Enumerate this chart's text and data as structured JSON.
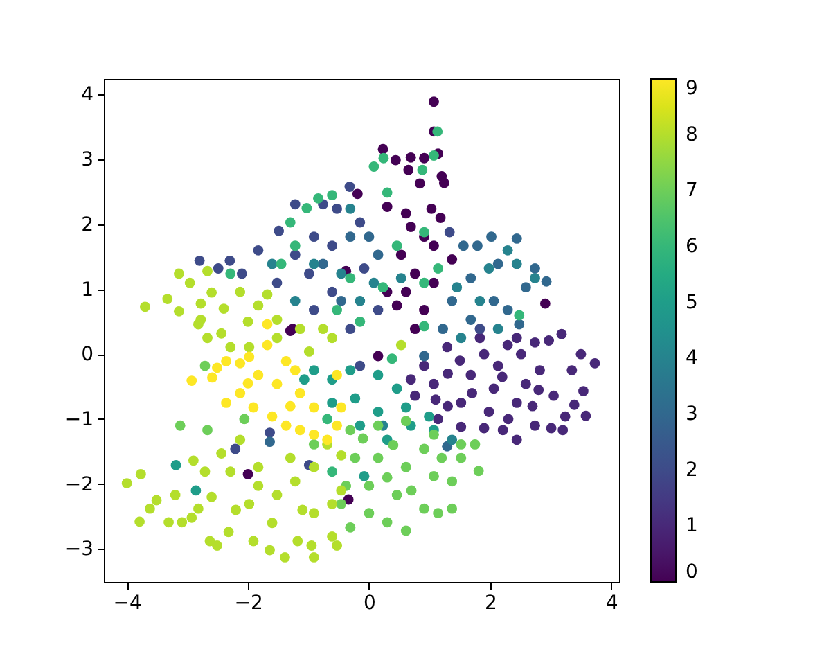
{
  "chart_data": {
    "type": "scatter",
    "x": [
      1.07,
      1.07,
      0.23,
      0.44,
      0.69,
      0.91,
      1.14,
      0.65,
      1.2,
      1.24,
      0.84,
      -0.19,
      0.3,
      0.61,
      1.03,
      1.18,
      0.69,
      0.91,
      1.07,
      0.53,
      0.76,
      0.61,
      1.07,
      0.46,
      0.91,
      0.76,
      -0.38,
      -1.3,
      1.37,
      0.3,
      2.91,
      -2.0,
      -0.34,
      -1.26,
      0.15,
      2.74,
      2.97,
      3.18,
      3.5,
      3.73,
      3.35,
      3.54,
      3.58,
      3.39,
      3.05,
      3.24,
      3.2,
      3.01,
      2.74,
      2.44,
      2.21,
      1.9,
      1.52,
      1.14,
      0.76,
      0.69,
      0.91,
      1.29,
      1.83,
      2.29,
      2.51,
      2.82,
      1.68,
      2.06,
      1.52,
      2.44,
      1.07,
      2.13,
      2.59,
      1.98,
      2.44,
      1.3,
      1.7,
      2.2,
      1.3,
      2.7,
      1.9,
      2.3,
      1.1,
      2.8,
      1.5,
      -2.8,
      -2.49,
      -2.3,
      -2.1,
      -1.83,
      -1.49,
      -1.22,
      -0.76,
      -0.32,
      -0.53,
      -0.91,
      -1.22,
      -0.61,
      -0.15,
      -0.99,
      -1.52,
      -0.61,
      -0.08,
      0.15,
      -0.31,
      -0.91,
      1.33,
      1.83,
      -0.99,
      -1.64,
      -2.21,
      -0.15,
      2.44,
      2.02,
      1.79,
      1.56,
      2.74,
      2.93,
      2.59,
      2.13,
      2.48,
      2.29,
      1.68,
      1.37,
      1.22,
      1.68,
      2.06,
      -0.31,
      0.15,
      -0.76,
      -0.46,
      0.0,
      0.91,
      1.29,
      -1.64,
      -0.31,
      -0.91,
      -0.46,
      0.08,
      -0.15,
      0.53,
      1.45,
      1.83,
      2.13,
      1.52,
      -1.22,
      -1.6,
      2.29,
      1.98,
      2.44,
      2.74,
      1.37,
      0.23,
      -0.91,
      -0.61,
      -0.31,
      0.15,
      -0.23,
      0.15,
      0.61,
      0.99,
      1.07,
      0.3,
      -0.08,
      -0.61,
      0.46,
      -0.15,
      -1.07,
      0.69,
      -3.19,
      -2.86,
      0.08,
      0.24,
      0.88,
      1.13,
      1.07,
      0.3,
      -0.84,
      -1.03,
      -1.3,
      -0.61,
      0.91,
      0.46,
      -1.22,
      -1.45,
      -2.29,
      -0.31,
      -0.53,
      -0.15,
      0.91,
      0.91,
      1.14,
      0.23,
      2.48,
      0.38,
      -0.61,
      -0.69,
      -0.31,
      0.15,
      0.61,
      1.07,
      1.52,
      1.75,
      1.81,
      1.52,
      1.37,
      1.37,
      1.14,
      0.91,
      0.61,
      0.3,
      0.0,
      -0.31,
      -0.46,
      -0.38,
      -0.23,
      0.15,
      0.61,
      1.07,
      0.46,
      0.91,
      0.0,
      -0.91,
      -2.06,
      -3.12,
      -2.67,
      -2.71,
      0.3,
      0.7,
      0.4,
      1.2,
      -0.1,
      -3.7,
      -3.33,
      -3.14,
      -3.14,
      -2.96,
      -2.78,
      -2.67,
      -2.78,
      -2.44,
      -2.13,
      -1.83,
      -1.68,
      -1.52,
      -1.14,
      -0.76,
      -2.82,
      -2.67,
      -2.29,
      -1.98,
      -1.52,
      -0.99,
      -0.61,
      0.53,
      -2.4,
      -2.0,
      -2.6,
      -4.0,
      -3.77,
      -3.79,
      -3.62,
      -3.51,
      -3.31,
      -3.2,
      -3.09,
      -2.93,
      -2.82,
      -2.9,
      -2.71,
      -2.63,
      -2.51,
      -2.32,
      -1.91,
      -1.64,
      -1.39,
      -1.18,
      -0.91,
      -0.95,
      -0.61,
      -0.53,
      -0.61,
      -0.91,
      -1.52,
      -1.98,
      -2.29,
      -1.83,
      -1.3,
      -0.91,
      -0.69,
      -0.46,
      -2.13,
      -2.44,
      -1.83,
      -1.22,
      -0.46,
      -2.2,
      -1.6,
      -1.1,
      -2.6,
      -2.93,
      -2.51,
      -2.59,
      -2.36,
      -2.13,
      -1.98,
      -1.68,
      -1.37,
      -1.22,
      -2.36,
      -2.13,
      -1.91,
      -1.6,
      -1.37,
      -1.14,
      -0.91,
      -0.69,
      -0.53,
      -0.46,
      -0.91,
      -1.52,
      -1.83,
      -1.14,
      -0.53,
      -1.68,
      -2.0,
      -1.3
    ],
    "values": [
      3.89,
      3.43,
      3.16,
      2.99,
      3.03,
      3.02,
      3.09,
      2.84,
      2.74,
      2.64,
      2.63,
      2.47,
      2.27,
      2.17,
      2.24,
      2.1,
      1.96,
      1.81,
      1.67,
      1.53,
      1.24,
      0.96,
      1.1,
      0.75,
      0.68,
      0.39,
      1.28,
      0.36,
      1.46,
      0.96,
      0.78,
      -1.85,
      -2.24,
      0.39,
      -0.03,
      0.18,
      0.21,
      0.31,
      0.0,
      -0.14,
      -0.25,
      -0.57,
      -0.95,
      -0.78,
      -0.64,
      -0.96,
      -1.17,
      -1.14,
      -1.1,
      -1.32,
      -1.17,
      -1.14,
      -1.12,
      -1.0,
      -0.64,
      -0.39,
      -0.18,
      0.11,
      0.25,
      0.14,
      0.0,
      -0.25,
      -0.32,
      -0.53,
      -0.75,
      -0.75,
      -0.46,
      -0.18,
      -0.46,
      -0.89,
      0.25,
      -0.3,
      -0.6,
      -0.35,
      -0.8,
      -0.8,
      0.0,
      -1.0,
      -0.7,
      -0.55,
      -0.1,
      1.44,
      1.32,
      1.44,
      1.24,
      1.6,
      1.9,
      2.31,
      2.31,
      2.58,
      2.24,
      1.81,
      1.53,
      1.67,
      2.03,
      1.24,
      1.1,
      0.96,
      1.32,
      0.68,
      0.39,
      0.68,
      1.88,
      0.39,
      -1.71,
      -1.21,
      -1.46,
      -0.18,
      1.78,
      1.81,
      1.67,
      1.67,
      1.32,
      1.12,
      1.03,
      1.39,
      0.46,
      0.68,
      1.17,
      0.82,
      0.39,
      0.53,
      0.82,
      1.81,
      1.53,
      1.39,
      0.82,
      1.81,
      -0.03,
      -1.42,
      -1.35,
      2.24,
      1.39,
      1.24,
      1.1,
      0.82,
      1.17,
      1.03,
      0.82,
      0.39,
      0.25,
      0.82,
      1.39,
      1.6,
      1.32,
      1.39,
      1.17,
      -1.32,
      -1.1,
      -0.25,
      -0.39,
      -0.25,
      -0.32,
      -0.68,
      -0.89,
      -0.82,
      -0.96,
      -1.17,
      -1.32,
      -1.88,
      -0.75,
      -0.53,
      -1.1,
      -0.39,
      -1.1,
      -1.71,
      -2.1,
      2.89,
      3.02,
      2.84,
      3.43,
      3.06,
      2.49,
      2.4,
      2.25,
      2.03,
      2.45,
      1.88,
      1.67,
      1.67,
      1.39,
      1.24,
      1.17,
      0.68,
      0.5,
      1.1,
      0.43,
      1.32,
      1.03,
      0.6,
      -0.07,
      -1.81,
      -1.0,
      -1.17,
      -1.1,
      -1.03,
      -1.24,
      -1.39,
      -1.39,
      -1.8,
      -1.6,
      -1.96,
      -2.38,
      -2.45,
      -2.38,
      -2.72,
      -2.59,
      -2.45,
      -2.67,
      -2.31,
      -2.03,
      -1.6,
      -1.6,
      -1.74,
      -1.88,
      -2.17,
      -1.46,
      -2.03,
      -1.39,
      -1.0,
      -1.1,
      -1.17,
      -0.18,
      -1.9,
      -2.1,
      -1.4,
      -1.6,
      -1.3,
      0.73,
      0.85,
      0.66,
      1.24,
      1.1,
      0.78,
      1.28,
      0.53,
      0.32,
      0.96,
      0.75,
      0.92,
      0.53,
      0.39,
      0.39,
      0.46,
      0.25,
      0.11,
      0.11,
      0.25,
      0.04,
      0.25,
      0.14,
      0.7,
      0.5,
      0.95,
      -1.99,
      -1.85,
      -2.58,
      -2.38,
      -2.25,
      -2.59,
      -2.17,
      -2.59,
      -2.52,
      -2.38,
      -1.64,
      -1.81,
      -2.88,
      -2.95,
      -2.74,
      -2.88,
      -3.02,
      -3.13,
      -2.88,
      -3.13,
      -2.95,
      -2.81,
      -2.95,
      -2.31,
      -2.45,
      -2.17,
      -2.31,
      -1.81,
      -1.74,
      -1.6,
      -1.74,
      -1.39,
      -1.56,
      -1.32,
      -1.53,
      -2.03,
      -1.96,
      -2.1,
      -2.4,
      -2.6,
      -2.4,
      -2.2,
      -0.41,
      -0.21,
      -0.36,
      -0.11,
      -0.14,
      -0.04,
      0.14,
      -0.11,
      -0.25,
      -0.75,
      -0.6,
      -0.82,
      -0.96,
      -1.1,
      -1.17,
      -1.24,
      -1.32,
      -1.1,
      -0.82,
      -0.82,
      -0.46,
      -0.32,
      -0.6,
      -0.32,
      0.46,
      -0.45,
      -0.8
    ],
    "cvalues": [
      0,
      0,
      0,
      0,
      0,
      0,
      0,
      0,
      0,
      0,
      0,
      0,
      0,
      0,
      0,
      0,
      0,
      0,
      0,
      0,
      0,
      0,
      0,
      0,
      0,
      0,
      0,
      0,
      0,
      0,
      0,
      0,
      0,
      0,
      0,
      1,
      1,
      1,
      1,
      1,
      1,
      1,
      1,
      1,
      1,
      1,
      1,
      1,
      1,
      1,
      1,
      1,
      1,
      1,
      1,
      1,
      1,
      1,
      1,
      1,
      1,
      1,
      1,
      1,
      1,
      1,
      1,
      1,
      1,
      1,
      1,
      1,
      1,
      1,
      1,
      1,
      1,
      1,
      1,
      1,
      1,
      2,
      2,
      2,
      2,
      2,
      2,
      2,
      2,
      2,
      2,
      2,
      2,
      2,
      2,
      2,
      2,
      2,
      2,
      2,
      2,
      2,
      2,
      2,
      2,
      2,
      2,
      2,
      3,
      3,
      3,
      3,
      3,
      3,
      3,
      3,
      3,
      3,
      3,
      3,
      3,
      3,
      3,
      3,
      3,
      3,
      3,
      3,
      3,
      3,
      3,
      4,
      4,
      4,
      4,
      4,
      4,
      4,
      4,
      4,
      4,
      4,
      4,
      4,
      4,
      4,
      4,
      4,
      4,
      5,
      5,
      5,
      5,
      5,
      5,
      5,
      5,
      5,
      5,
      5,
      5,
      5,
      5,
      5,
      5,
      5,
      5,
      6,
      6,
      6,
      6,
      6,
      6,
      6,
      6,
      6,
      6,
      6,
      6,
      6,
      6,
      6,
      6,
      6,
      6,
      6,
      6,
      6,
      6,
      6,
      6,
      6,
      6,
      7,
      7,
      7,
      7,
      7,
      7,
      7,
      7,
      7,
      7,
      7,
      7,
      7,
      7,
      7,
      7,
      7,
      7,
      7,
      7,
      7,
      7,
      7,
      7,
      7,
      7,
      7,
      7,
      7,
      7,
      7,
      7,
      7,
      7,
      7,
      8,
      8,
      8,
      8,
      8,
      8,
      8,
      8,
      8,
      8,
      8,
      8,
      8,
      8,
      8,
      8,
      8,
      8,
      8,
      8,
      8,
      8,
      8,
      8,
      8,
      8,
      8,
      8,
      8,
      8,
      8,
      8,
      8,
      8,
      8,
      8,
      8,
      8,
      8,
      8,
      8,
      8,
      8,
      8,
      8,
      8,
      8,
      8,
      8,
      8,
      8,
      8,
      8,
      8,
      8,
      8,
      8,
      8,
      8,
      8,
      8,
      8,
      8,
      8,
      8,
      8,
      8,
      8,
      9,
      9,
      9,
      9,
      9,
      9,
      9,
      9,
      9,
      9,
      9,
      9,
      9,
      9,
      9,
      9,
      9,
      9,
      9,
      9,
      9,
      9,
      9,
      9,
      9,
      9,
      9
    ],
    "xlim": [
      -4.38,
      4.13
    ],
    "ylim": [
      -3.51,
      4.24
    ],
    "xticks": [
      -4,
      -2,
      0,
      2,
      4
    ],
    "yticks": [
      -3,
      -2,
      -1,
      0,
      1,
      2,
      3,
      4
    ],
    "clim": [
      0,
      9
    ],
    "cticks": [
      0,
      1,
      2,
      3,
      4,
      5,
      6,
      7,
      8,
      9
    ],
    "marker": "circle",
    "grid": false
  }
}
